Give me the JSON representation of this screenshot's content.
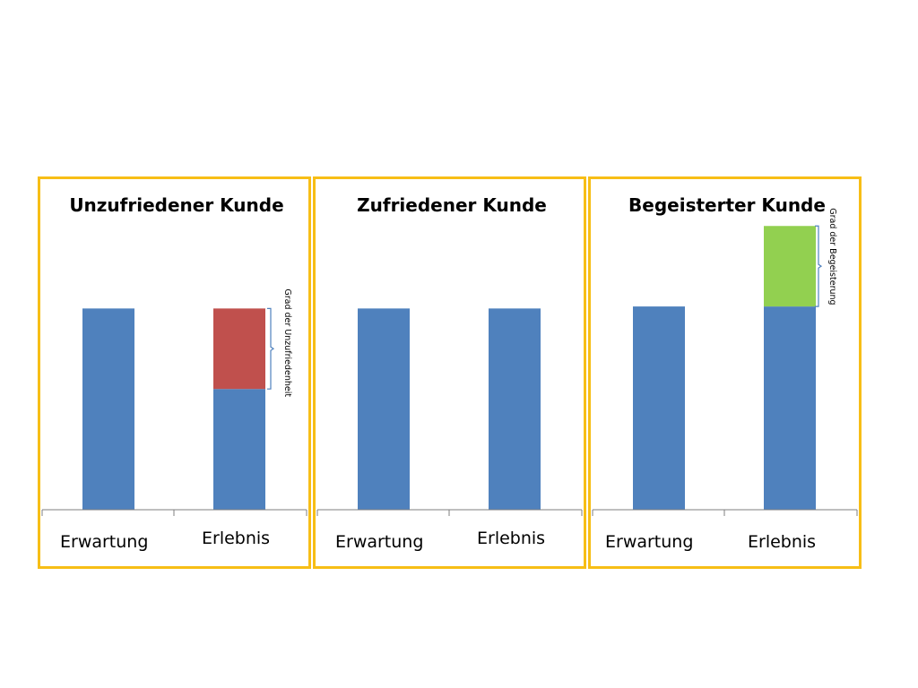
{
  "colors": {
    "frame": "#F7BE16",
    "base": "#4F81BD",
    "deficit": "#C0504D",
    "surplus": "#92D050",
    "axis": "#7F7F7F"
  },
  "chart_data": [
    {
      "type": "bar",
      "title": "Unzufriedener Kunde",
      "categories": [
        "Erwartung",
        "Erlebnis"
      ],
      "series": [
        {
          "values": [
            100,
            60
          ]
        },
        {
          "values": [
            0,
            40
          ]
        }
      ],
      "annotation": "Grad der Unzufriedenheit",
      "ylim": [
        0,
        142
      ],
      "grid": false
    },
    {
      "type": "bar",
      "title": "Zufriedener Kunde",
      "categories": [
        "Erwartung",
        "Erlebnis"
      ],
      "series": [
        {
          "values": [
            100,
            100
          ]
        }
      ],
      "ylim": [
        0,
        142
      ],
      "grid": false
    },
    {
      "type": "bar",
      "title": "Begeisterter Kunde",
      "categories": [
        "Erwartung",
        "Erlebnis"
      ],
      "series": [
        {
          "values": [
            101,
            101
          ]
        },
        {
          "values": [
            0,
            40
          ]
        }
      ],
      "annotation": "Grad der Begeisterung",
      "ylim": [
        0,
        142
      ],
      "grid": false
    }
  ]
}
